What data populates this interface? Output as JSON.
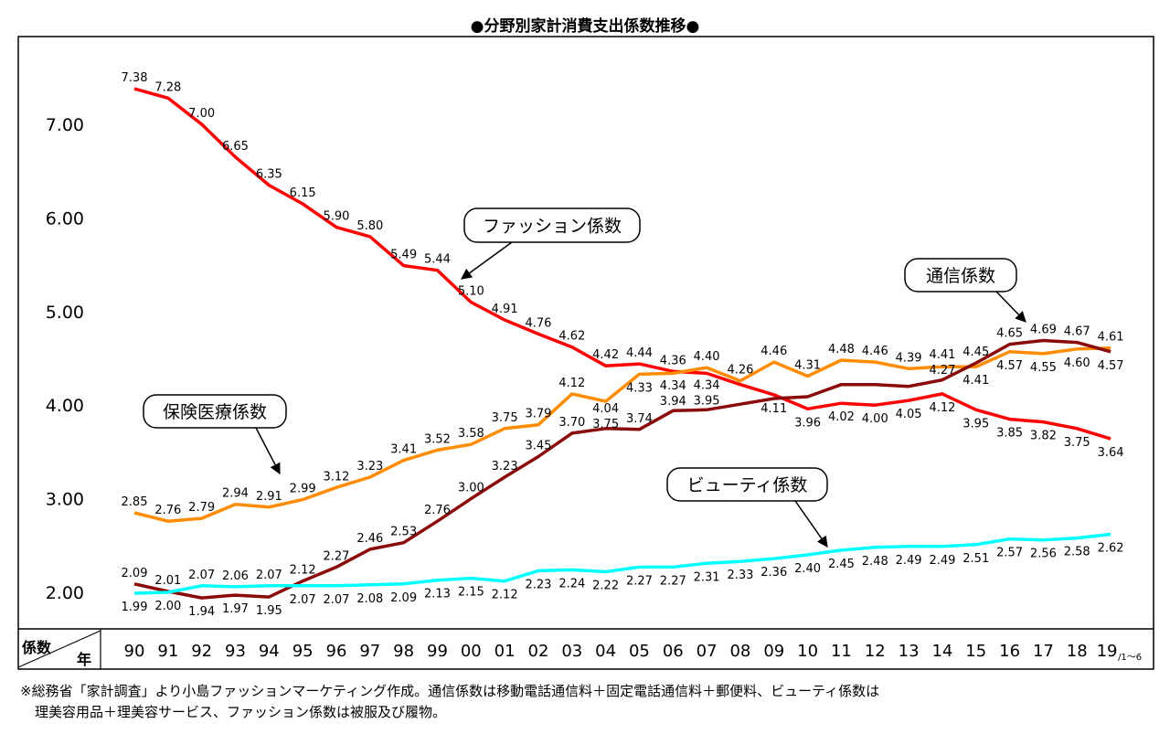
{
  "chart_data": {
    "type": "line",
    "title": "●分野別家計消費支出係数推移●",
    "ylabel": "係数",
    "xlabel": "年",
    "ylim": [
      1.6,
      7.5
    ],
    "yticks": [
      "2.00",
      "3.00",
      "4.00",
      "5.00",
      "6.00",
      "7.00"
    ],
    "grid": false,
    "categories": [
      "90",
      "91",
      "92",
      "93",
      "94",
      "95",
      "96",
      "97",
      "98",
      "99",
      "00",
      "01",
      "02",
      "03",
      "04",
      "05",
      "06",
      "07",
      "08",
      "09",
      "10",
      "11",
      "12",
      "13",
      "14",
      "15",
      "16",
      "17",
      "18",
      "19"
    ],
    "last_category_suffix": "/1～6",
    "series": [
      {
        "name": "ファッション係数",
        "color": "#ff0000",
        "values": [
          7.38,
          7.28,
          7.0,
          6.65,
          6.35,
          6.15,
          5.9,
          5.8,
          5.49,
          5.44,
          5.1,
          4.91,
          4.76,
          4.62,
          4.42,
          4.44,
          4.36,
          4.34,
          4.22,
          4.11,
          3.96,
          4.02,
          4.0,
          4.05,
          4.12,
          3.95,
          3.85,
          3.82,
          3.75,
          3.64
        ]
      },
      {
        "name": "保険医療係数",
        "color": "#ff8c00",
        "values": [
          2.85,
          2.76,
          2.79,
          2.94,
          2.91,
          2.99,
          3.12,
          3.23,
          3.41,
          3.52,
          3.58,
          3.75,
          3.79,
          4.12,
          4.04,
          4.33,
          4.34,
          4.4,
          4.26,
          4.46,
          4.31,
          4.48,
          4.46,
          4.39,
          4.41,
          4.41,
          4.57,
          4.55,
          4.6,
          4.61
        ]
      },
      {
        "name": "通信係数",
        "color": "#8b0a0a",
        "values": [
          2.09,
          2.01,
          1.94,
          1.97,
          1.95,
          2.12,
          2.27,
          2.46,
          2.53,
          2.76,
          3.0,
          3.23,
          3.45,
          3.7,
          3.75,
          3.74,
          3.94,
          3.95,
          4.01,
          4.07,
          4.09,
          4.22,
          4.22,
          4.2,
          4.27,
          4.45,
          4.65,
          4.69,
          4.67,
          4.57
        ]
      },
      {
        "name": "ビューティ係数",
        "color": "#00ffff",
        "values": [
          1.99,
          2.0,
          2.07,
          2.06,
          2.07,
          2.07,
          2.07,
          2.08,
          2.09,
          2.13,
          2.15,
          2.12,
          2.23,
          2.24,
          2.22,
          2.27,
          2.27,
          2.31,
          2.33,
          2.36,
          2.4,
          2.45,
          2.48,
          2.49,
          2.49,
          2.51,
          2.57,
          2.56,
          2.58,
          2.62
        ]
      }
    ]
  },
  "notes": [
    "※総務省「家計調査」より小島ファッションマーケティング作成。通信係数は移動電話通信料＋固定電話通信料＋郵便料、ビューティ係数は",
    "理美容用品＋理美容サービス、ファッション係数は被服及び履物。"
  ]
}
